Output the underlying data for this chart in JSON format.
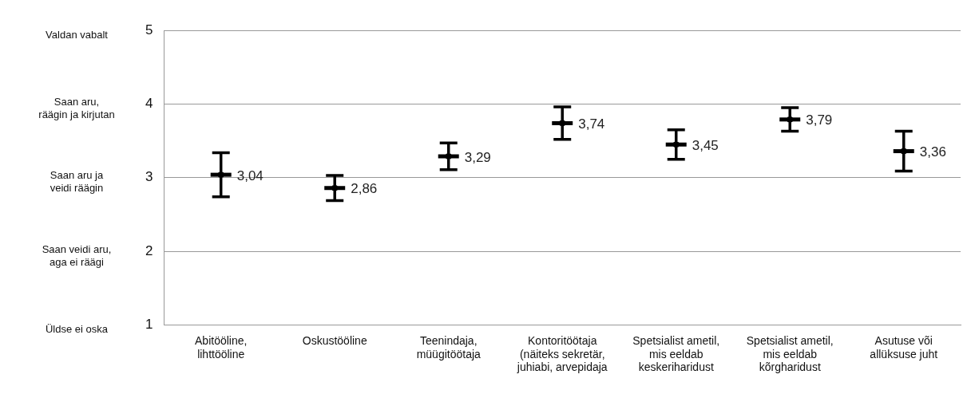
{
  "chart_data": {
    "type": "scatter",
    "categories": [
      "Abitööline,\nlihttööline",
      "Oskustööline",
      "Teenindaja,\nmüügitöötaja",
      "Kontoritöötaja\n(näiteks sekretär,\njuhiabi, arvepidaja",
      "Spetsialist ametil,\nmis eeldab\nkeskeriharidust",
      "Spetsialist ametil,\nmis eeldab\nkõrgharidust",
      "Asutuse või\nallüksuse juht"
    ],
    "series": [
      {
        "color": "#000000",
        "values": [
          3.04,
          2.86,
          3.29,
          3.74,
          3.45,
          3.79,
          3.36
        ],
        "value_labels": [
          "3,04",
          "2,86",
          "3,29",
          "3,74",
          "3,45",
          "3,79",
          "3,36"
        ],
        "errors": [
          0.3,
          0.17,
          0.18,
          0.22,
          0.2,
          0.16,
          0.27
        ]
      }
    ],
    "ylim": [
      1,
      5
    ],
    "yticks": [
      1,
      2,
      3,
      4,
      5
    ],
    "annotations": [
      "Üldse ei oska",
      "Saan veidi aru,\naga ei räägi",
      "Saan aru ja\nveidi räägin",
      "Saan aru,\nräägin ja kirjutan",
      "Valdan vabalt"
    ],
    "grid": "y",
    "legend": false
  }
}
